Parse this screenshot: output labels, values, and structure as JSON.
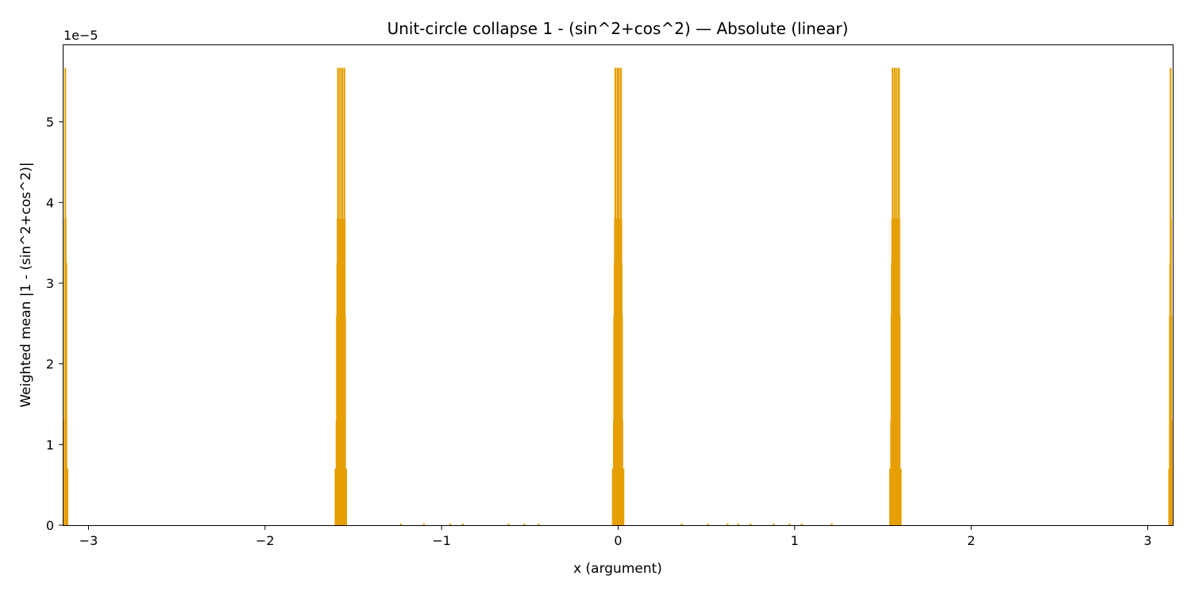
{
  "chart_data": {
    "type": "bar",
    "title": "Unit-circle collapse 1 - (sin^2+cos^2) — Absolute (linear)",
    "xlabel": "x (argument)",
    "ylabel": "Weighted mean |1 - (sin^2+cos^2)|",
    "y_offset_text": "1e−5",
    "y_multiplier": 1e-05,
    "xlim": [
      -3.1416,
      3.1416
    ],
    "ylim": [
      0,
      5.95
    ],
    "x_ticks": [
      -3,
      -2,
      -1,
      0,
      1,
      2,
      3
    ],
    "x_tick_labels": [
      "−3",
      "−2",
      "−1",
      "0",
      "1",
      "2",
      "3"
    ],
    "y_ticks": [
      0,
      1,
      2,
      3,
      4,
      5
    ],
    "y_tick_labels": [
      "0",
      "1",
      "2",
      "3",
      "4",
      "5"
    ],
    "grid": false,
    "bar_color": "#e69f00",
    "series": [
      {
        "x": [
          -3.1355,
          -3.1335,
          -3.1315,
          -3.1295,
          -3.1275,
          -3.1255,
          -3.1235,
          -3.1215,
          -3.1195,
          -1.6008,
          -1.5988,
          -1.5968,
          -1.5948,
          -1.5928,
          -1.5908,
          -1.5888,
          -1.5868,
          -1.5848,
          -1.5828,
          -1.5808,
          -1.5788,
          -1.5768,
          -1.5748,
          -1.5728,
          -1.5708,
          -1.5688,
          -1.5668,
          -1.5648,
          -1.5628,
          -1.5608,
          -1.5588,
          -1.5568,
          -1.5548,
          -1.5528,
          -1.5508,
          -1.5488,
          -1.5468,
          -1.5448,
          -1.5428,
          -1.5408,
          -0.03,
          -0.028,
          -0.026,
          -0.024,
          -0.022,
          -0.02,
          -0.018,
          -0.016,
          -0.014,
          -0.012,
          -0.01,
          -0.008,
          -0.006,
          -0.004,
          -0.002,
          0.0,
          0.002,
          0.004,
          0.006,
          0.008,
          0.01,
          0.012,
          0.014,
          0.016,
          0.018,
          0.02,
          0.022,
          0.024,
          0.026,
          0.028,
          0.03,
          1.5408,
          1.5428,
          1.5448,
          1.5468,
          1.5488,
          1.5508,
          1.5528,
          1.5548,
          1.5568,
          1.5588,
          1.5608,
          1.5628,
          1.5648,
          1.5668,
          1.5688,
          1.5708,
          1.5728,
          1.5748,
          1.5768,
          1.5788,
          1.5808,
          1.5828,
          1.5848,
          1.5868,
          1.5888,
          1.5908,
          1.5928,
          1.5948,
          1.5968,
          1.5988,
          1.6008,
          3.1215,
          3.1235,
          3.1255,
          3.1275,
          3.1295,
          3.1315,
          3.1335,
          3.1355,
          -1.23,
          -1.1,
          -0.95,
          -0.88,
          -0.62,
          -0.53,
          -0.45,
          0.36,
          0.51,
          0.62,
          0.68,
          0.75,
          0.88,
          0.97,
          1.04,
          1.21
        ],
        "values": [
          1.3,
          3.8,
          5.67,
          3.8,
          2.6,
          3.25,
          0.7,
          0.7,
          0.7,
          0.7,
          0.7,
          0.7,
          1.3,
          2.6,
          3.25,
          3.8,
          5.67,
          3.8,
          2.6,
          1.3,
          3.25,
          3.8,
          5.67,
          3.8,
          2.6,
          1.3,
          3.25,
          3.8,
          5.67,
          3.8,
          2.6,
          1.3,
          3.25,
          3.8,
          5.67,
          3.8,
          2.6,
          0.7,
          0.7,
          0.7,
          0.7,
          0.7,
          0.7,
          1.3,
          2.6,
          3.25,
          3.8,
          5.67,
          3.8,
          2.6,
          1.3,
          2.6,
          3.8,
          5.67,
          3.25,
          1.3,
          3.25,
          5.67,
          3.8,
          2.6,
          1.3,
          2.6,
          3.8,
          5.67,
          3.8,
          3.25,
          2.6,
          1.3,
          0.7,
          0.7,
          0.7,
          0.7,
          0.7,
          0.7,
          1.3,
          2.6,
          3.25,
          3.8,
          5.67,
          3.8,
          2.6,
          1.3,
          3.25,
          3.8,
          5.67,
          3.8,
          2.6,
          1.3,
          3.25,
          3.8,
          5.67,
          3.8,
          2.6,
          1.3,
          3.25,
          3.8,
          5.67,
          3.8,
          2.6,
          0.7,
          0.7,
          0.7,
          0.7,
          0.7,
          2.6,
          3.25,
          5.67,
          3.8,
          2.6,
          1.3,
          0.02,
          0.02,
          0.02,
          0.02,
          0.02,
          0.02,
          0.02,
          0.02,
          0.02,
          0.02,
          0.02,
          0.02,
          0.02,
          0.02,
          0.02,
          0.02
        ]
      }
    ]
  }
}
